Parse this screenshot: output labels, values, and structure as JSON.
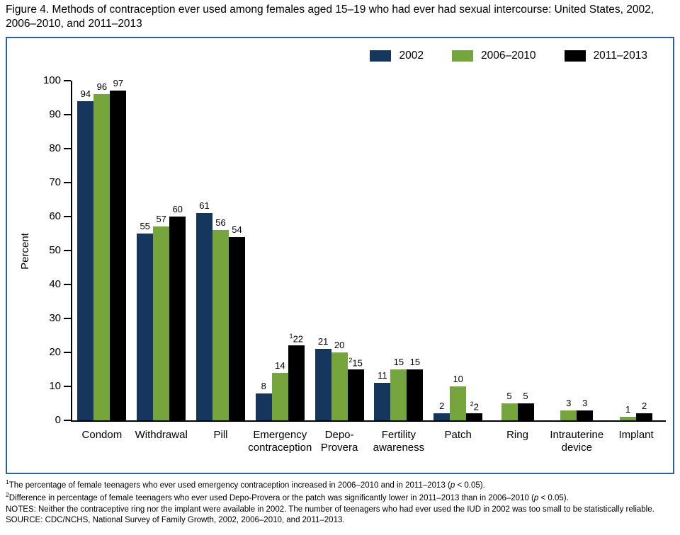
{
  "colors": {
    "panel_border": "#2E5FA3",
    "axis": "#000000",
    "series_2002": "#17365D",
    "series_2006_2010": "#76A53D",
    "series_2011_2013": "#000000"
  },
  "chart_data": {
    "type": "bar",
    "title": "Figure 4. Methods of contraception ever used among females aged 15–19 who had ever had sexual intercourse: United States, 2002, 2006–2010, and 2011–2013",
    "xlabel": "",
    "ylabel": "Percent",
    "ylim": [
      0,
      100
    ],
    "ytick_step": 10,
    "grid": false,
    "legend_position": "top-right",
    "categories": [
      "Condom",
      "Withdrawal",
      "Pill",
      "Emergency\ncontraception",
      "Depo-\nProvera",
      "Fertility\nawareness",
      "Patch",
      "Ring",
      "Intrauterine\ndevice",
      "Implant"
    ],
    "series": [
      {
        "name": "2002",
        "color": "#17365D",
        "values": [
          94,
          55,
          61,
          8,
          21,
          11,
          2,
          null,
          null,
          null
        ],
        "label_sups": [
          "",
          "",
          "",
          "",
          "",
          "",
          "",
          "",
          "",
          ""
        ]
      },
      {
        "name": "2006–2010",
        "color": "#76A53D",
        "values": [
          96,
          57,
          56,
          14,
          20,
          15,
          10,
          5,
          3,
          1
        ],
        "label_sups": [
          "",
          "",
          "",
          "",
          "",
          "",
          "",
          "",
          "",
          ""
        ]
      },
      {
        "name": "2011–2013",
        "color": "#000000",
        "values": [
          97,
          60,
          54,
          22,
          15,
          15,
          2,
          5,
          3,
          2
        ],
        "label_sups": [
          "",
          "",
          "",
          "1",
          "2",
          "",
          "2",
          "",
          "",
          ""
        ]
      }
    ]
  },
  "footnotes": [
    {
      "sup": "1",
      "text": "The percentage of female teenagers who ever used emergency contraception increased in 2006–2010 and in 2011–2013 (p < 0.05)."
    },
    {
      "sup": "2",
      "text": "Difference in percentage of female teenagers who ever used Depo-Provera or the patch was significantly lower in 2011–2013 than in 2006–2010 (p < 0.05)."
    },
    {
      "sup": "",
      "text": "NOTES: Neither the contraceptive ring nor the implant were available in 2002. The number of teenagers who had ever used the IUD in 2002 was too small to be statistically reliable."
    },
    {
      "sup": "",
      "text": "SOURCE: CDC/NCHS, National Survey of Family Growth, 2002, 2006–2010, and 2011–2013."
    }
  ]
}
